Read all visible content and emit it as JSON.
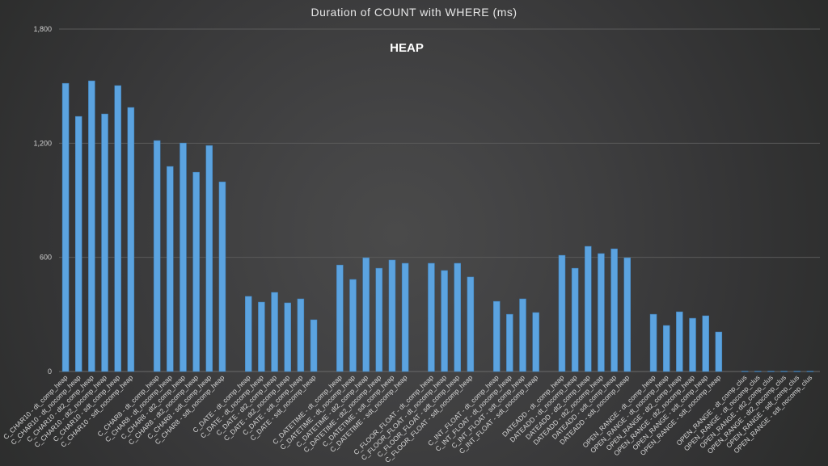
{
  "chart_data": {
    "type": "bar",
    "title": "Duration of COUNT with WHERE (ms)",
    "subtitle": "HEAP",
    "xlabel": "",
    "ylabel": "",
    "ylim": [
      0,
      1800
    ],
    "yticks": [
      0,
      600,
      1200,
      1800
    ],
    "ytick_labels": [
      "0",
      "600",
      "1,200",
      "1,800"
    ],
    "grid": true,
    "bar_color": "#5ba3e0",
    "categories": [
      "C_CHAR10 - dt_comp_heap",
      "C_CHAR10 - dt_nocomp_heap",
      "C_CHAR10 - dt2_comp_heap",
      "C_CHAR10 - dt2_nocomp_heap",
      "C_CHAR10 - sdt_comp_heap",
      "C_CHAR10 - sdt_nocomp_heap",
      "",
      "C_CHAR8 - dt_comp_heap",
      "C_CHAR8 - dt_nocomp_heap",
      "C_CHAR8 - dt2_comp_heap",
      "C_CHAR8 - dt2_nocomp_heap",
      "C_CHAR8 - sdt_comp_heap",
      "C_CHAR8 - sdt_nocomp_heap",
      "",
      "C_DATE - dt_comp_heap",
      "C_DATE - dt_nocomp_heap",
      "C_DATE - dt2_comp_heap",
      "C_DATE - dt2_nocomp_heap",
      "C_DATE - sdt_comp_heap",
      "C_DATE - sdt_nocomp_heap",
      "",
      "C_DATETIME - dt_comp_heap",
      "C_DATETIME - dt_nocomp_heap",
      "C_DATETIME - dt2_comp_heap",
      "C_DATETIME - dt2_nocomp_heap",
      "C_DATETIME - sdt_comp_heap",
      "C_DATETIME - sdt_nocomp_heap",
      "",
      "C_FLOOR_FLOAT - dt_comp_heap",
      "C_FLOOR_FLOAT - dt_nocomp_heap",
      "C_FLOOR_FLOAT - sdt_comp_heap",
      "C_FLOOR_FLOAT - sdt_nocomp_heap",
      "",
      "C_INT_FLOAT - dt_comp_heap",
      "C_INT_FLOAT - dt_nocomp_heap",
      "C_INT_FLOAT - sdt_comp_heap",
      "C_INT_FLOAT - sdt_nocomp_heap",
      "",
      "DATEADD - dt_comp_heap",
      "DATEADD - dt_nocomp_heap",
      "DATEADD - dt2_comp_heap",
      "DATEADD - dt2_nocomp_heap",
      "DATEADD - sdt_comp_heap",
      "DATEADD - sdt_nocomp_heap",
      "",
      "OPEN_RANGE - dt_comp_heap",
      "OPEN_RANGE - dt_nocomp_heap",
      "OPEN_RANGE - dt2_comp_heap",
      "OPEN_RANGE - dt2_nocomp_heap",
      "OPEN_RANGE - sdt_comp_heap",
      "OPEN_RANGE - sdt_nocomp_heap",
      "",
      "OPEN_RANGE - dt_comp_clus",
      "OPEN_RANGE - dt_nocomp_clus",
      "OPEN_RANGE - dt2_comp_clus",
      "OPEN_RANGE - dt2_nocomp_clus",
      "OPEN_RANGE - sdt_comp_clus",
      "OPEN_RANGE - sdt_nocomp_clus"
    ],
    "values": [
      1515,
      1341,
      1528,
      1354,
      1503,
      1388,
      null,
      1214,
      1078,
      1201,
      1048,
      1188,
      997,
      null,
      395,
      365,
      416,
      361,
      382,
      272,
      null,
      560,
      484,
      598,
      543,
      586,
      569,
      null,
      569,
      531,
      569,
      497,
      null,
      369,
      301,
      382,
      310,
      null,
      611,
      543,
      658,
      620,
      645,
      598,
      null,
      301,
      242,
      314,
      280,
      293,
      208,
      null,
      2,
      2,
      2,
      2,
      2,
      2
    ]
  }
}
